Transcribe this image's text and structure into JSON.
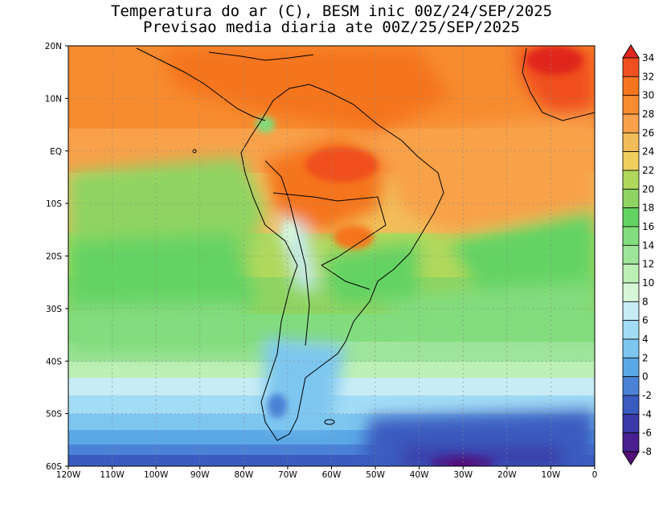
{
  "title": {
    "line1": "Temperatura do ar (C), BESM inic 00Z/24/SEP/2025",
    "line2": "Previsao media diaria ate 00Z/25/SEP/2025"
  },
  "map": {
    "lon_range": [
      -120,
      0
    ],
    "lat_range": [
      -60,
      20
    ],
    "lon_ticks": [
      {
        "value": -120,
        "label": "120W"
      },
      {
        "value": -110,
        "label": "110W"
      },
      {
        "value": -100,
        "label": "100W"
      },
      {
        "value": -90,
        "label": "90W"
      },
      {
        "value": -80,
        "label": "80W"
      },
      {
        "value": -70,
        "label": "70W"
      },
      {
        "value": -60,
        "label": "60W"
      },
      {
        "value": -50,
        "label": "50W"
      },
      {
        "value": -40,
        "label": "40W"
      },
      {
        "value": -30,
        "label": "30W"
      },
      {
        "value": -20,
        "label": "20W"
      },
      {
        "value": -10,
        "label": "10W"
      },
      {
        "value": 0,
        "label": "0"
      }
    ],
    "lat_ticks": [
      {
        "value": 20,
        "label": "20N"
      },
      {
        "value": 10,
        "label": "10N"
      },
      {
        "value": 0,
        "label": "EQ"
      },
      {
        "value": -10,
        "label": "10S"
      },
      {
        "value": -20,
        "label": "20S"
      },
      {
        "value": -30,
        "label": "30S"
      },
      {
        "value": -40,
        "label": "40S"
      },
      {
        "value": -50,
        "label": "50S"
      },
      {
        "value": -60,
        "label": "60S"
      }
    ]
  },
  "colorbar": {
    "labels": [
      "34",
      "32",
      "30",
      "28",
      "26",
      "24",
      "22",
      "20",
      "18",
      "16",
      "14",
      "12",
      "10",
      "8",
      "6",
      "4",
      "2",
      "0",
      "-2",
      "-4",
      "-6",
      "-8"
    ],
    "colors": [
      "#e0261f",
      "#f0501f",
      "#f5751e",
      "#f78b2f",
      "#f8a14a",
      "#f1bd5a",
      "#f0cf5f",
      "#b0d85c",
      "#8fd462",
      "#63d363",
      "#83dc7d",
      "#9ee49b",
      "#bdf0b6",
      "#d7f5d7",
      "#c8ecf5",
      "#a2dcf5",
      "#7dc6f0",
      "#5ba8e6",
      "#4b82d6",
      "#3a5cc0",
      "#3a3aa8",
      "#4a2090",
      "#550f7a"
    ]
  },
  "chart_data": {
    "type": "heatmap",
    "title": "Temperatura do ar (C), BESM inic 00Z/24/SEP/2025",
    "subtitle": "Previsao media diaria ate 00Z/25/SEP/2025",
    "x_range": [
      -120,
      0
    ],
    "y_range": [
      -60,
      20
    ],
    "value_levels": [
      -8,
      -6,
      -4,
      -2,
      0,
      2,
      4,
      6,
      8,
      10,
      12,
      14,
      16,
      18,
      20,
      22,
      24,
      26,
      28,
      30,
      32,
      34
    ],
    "grid": true
  }
}
